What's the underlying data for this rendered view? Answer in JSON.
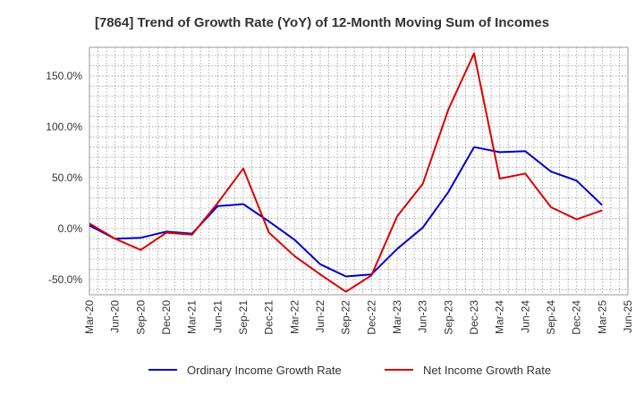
{
  "chart_data": {
    "type": "line",
    "title": "[7864]  Trend of Growth Rate (YoY) of 12-Month Moving Sum of Incomes",
    "xlabel": "",
    "ylabel": "",
    "x": [
      "2020-03",
      "2020-04",
      "2020-05",
      "2020-06",
      "2020-07",
      "2020-08",
      "2020-09",
      "2020-10",
      "2020-11",
      "2020-12",
      "2021-01",
      "2021-02",
      "2021-03",
      "2021-04",
      "2021-05",
      "2021-06",
      "2021-07",
      "2021-08",
      "2021-09",
      "2021-10",
      "2021-11",
      "2021-12",
      "2022-01",
      "2022-02",
      "2022-03",
      "2022-04",
      "2022-05",
      "2022-06",
      "2022-07",
      "2022-08",
      "2022-09",
      "2022-10",
      "2022-11",
      "2022-12",
      "2023-01",
      "2023-02",
      "2023-03",
      "2023-04",
      "2023-05",
      "2023-06",
      "2023-07",
      "2023-08",
      "2023-09",
      "2023-10",
      "2023-11",
      "2023-12",
      "2024-01",
      "2024-02",
      "2024-03",
      "2024-04",
      "2024-05",
      "2024-06",
      "2024-07",
      "2024-08",
      "2024-09",
      "2024-10",
      "2024-11",
      "2024-12",
      "2025-01",
      "2025-02",
      "2025-03",
      "2025-04",
      "2025-05",
      "2025-06"
    ],
    "x_tick_labels": [
      "Mar-20",
      "Jun-20",
      "Sep-20",
      "Dec-20",
      "Mar-21",
      "Jun-21",
      "Sep-21",
      "Dec-21",
      "Mar-22",
      "Jun-22",
      "Sep-22",
      "Dec-22",
      "Mar-23",
      "Jun-23",
      "Sep-23",
      "Dec-23",
      "Mar-24",
      "Jun-24",
      "Sep-24",
      "Dec-24",
      "Mar-25",
      "Jun-25"
    ],
    "y_ticks": [
      -50,
      0,
      50,
      100,
      150
    ],
    "y_tick_labels": [
      "-50.0%",
      "0.0%",
      "50.0%",
      "100.0%",
      "150.0%"
    ],
    "ylim": [
      -65,
      178
    ],
    "grid": true,
    "legend_position": "bottom",
    "series": [
      {
        "name": "Ordinary Income Growth Rate",
        "color": "#0000cc",
        "values": [
          3,
          null,
          null,
          -10,
          null,
          null,
          -9,
          null,
          null,
          -3,
          null,
          null,
          -5,
          null,
          null,
          22,
          null,
          null,
          24,
          null,
          null,
          7,
          null,
          null,
          -11,
          null,
          null,
          -35,
          null,
          null,
          -47,
          null,
          null,
          -45,
          null,
          null,
          -20,
          null,
          null,
          1,
          null,
          null,
          36,
          null,
          null,
          80,
          null,
          null,
          75,
          null,
          null,
          76,
          null,
          null,
          56,
          null,
          null,
          47,
          null,
          null,
          23,
          null,
          null,
          null
        ]
      },
      {
        "name": "Net Income Growth Rate",
        "color": "#dd0000",
        "values": [
          5,
          null,
          null,
          -10,
          null,
          null,
          -21,
          null,
          null,
          -4,
          null,
          null,
          -6,
          null,
          null,
          25,
          null,
          null,
          59,
          null,
          null,
          -4,
          null,
          null,
          -27,
          null,
          null,
          -45,
          null,
          null,
          -62,
          null,
          null,
          -46,
          null,
          null,
          12,
          null,
          null,
          44,
          null,
          null,
          117,
          null,
          null,
          172,
          null,
          null,
          49,
          null,
          null,
          54,
          null,
          null,
          21,
          null,
          null,
          9,
          null,
          null,
          18,
          null,
          null,
          null
        ]
      }
    ]
  }
}
